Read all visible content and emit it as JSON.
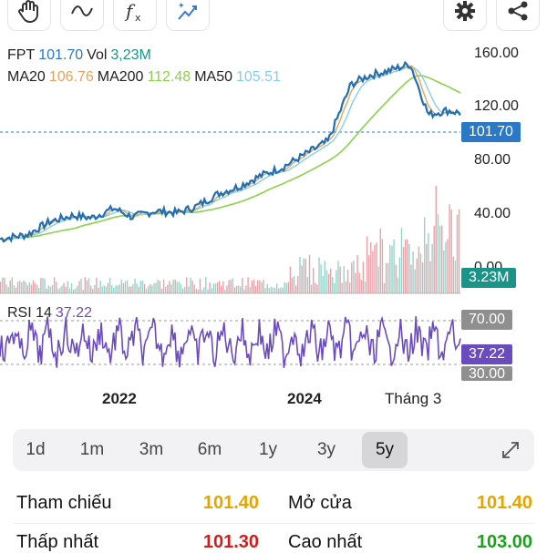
{
  "toolbar": {
    "icons": [
      "hand-icon",
      "wave-icon",
      "function-icon",
      "magic-icon",
      "gear-icon",
      "share-icon"
    ]
  },
  "header": {
    "symbol": "FPT",
    "price": "101.70",
    "vol_label": "Vol",
    "vol": "3,23M",
    "ma20_label": "MA20",
    "ma20": "106.76",
    "ma200_label": "MA200",
    "ma200": "112.48",
    "ma50_label": "MA50",
    "ma50": "105.51"
  },
  "colors": {
    "price_line": "#1e6fb5",
    "ma20": "#e8a35a",
    "ma200": "#8bd14a",
    "ma50": "#86cfe8",
    "rsi": "#6a4cbf",
    "up": "#e07b86",
    "down": "#6cbfb1",
    "price_tag": "#2a78c6",
    "vol_tag": "#1a9488",
    "rsi_tag": "#6a4cbf",
    "level_tag": "#8f8f8f",
    "ref": "#e6a400",
    "low": "#d01e1e",
    "high": "#1aa31a"
  },
  "price_axis": [
    "160.00",
    "120.00",
    "80.00",
    "40.00",
    "0.00"
  ],
  "tags": {
    "price": "101.70",
    "volume": "3.23M",
    "rsi_high": "70.00",
    "rsi_value": "37.22",
    "rsi_low": "30.00"
  },
  "rsi": {
    "label": "RSI 14",
    "value": "37.22"
  },
  "x_labels": [
    "2022",
    "2024",
    "Tháng 3"
  ],
  "periods": [
    "1d",
    "1m",
    "3m",
    "6m",
    "1y",
    "3y",
    "5y"
  ],
  "active_period": "5y",
  "stats": {
    "ref_label": "Tham chiếu",
    "ref_value": "101.40",
    "open_label": "Mở cửa",
    "open_value": "101.40",
    "low_label": "Thấp nhất",
    "low_value": "101.30",
    "high_label": "Cao nhất",
    "high_value": "103.00"
  }
}
